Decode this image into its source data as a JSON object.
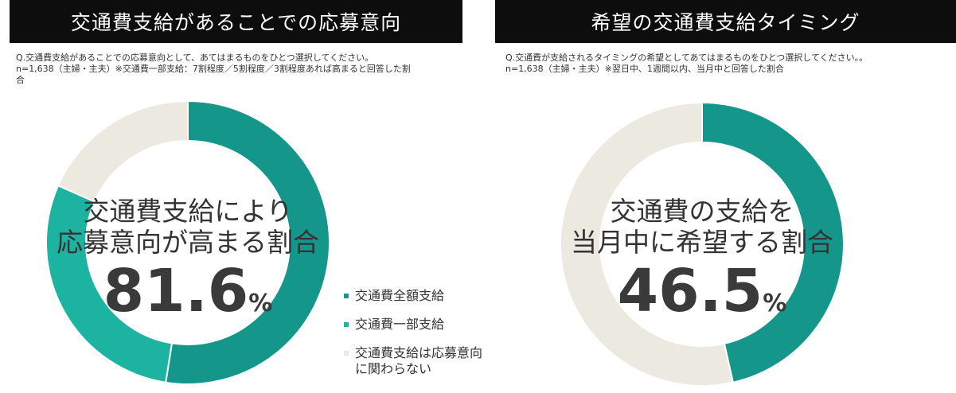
{
  "left_panel": {
    "title": "交通費支給があることでの応募意向",
    "note_q": "Q.交通費支給があることでの応募意向として、あてはまるものをひとつ選択してください。",
    "note_n": "n=1,638（主婦・主夫）※交通費一部支給：7割程度／5割程度／3割程度あれば高まると回答した割",
    "note_cont": "合",
    "center_line1": "交通費支給により",
    "center_line2": "応募意向が高まる割合",
    "big_number": "81.6",
    "big_unit": "%"
  },
  "right_panel": {
    "title": "希望の交通費支給タイミング",
    "note_q": "Q.交通費が支給されるタイミングの希望としてあてはまるものをひとつ選択してください。。",
    "note_n": "n=1,638（主婦・主夫）※翌日中、1週間以内、当月中と回答した割合",
    "center_line1": "交通費の支給を",
    "center_line2": "当月中に希望する割合",
    "big_number": "46.5",
    "big_unit": "%"
  },
  "legend": [
    {
      "label": "交通費全額支給",
      "color": "#14978a"
    },
    {
      "label": "交通費一部支給",
      "color": "#1cb3a1"
    },
    {
      "label": "交通費支給は応募意向に関わらない",
      "color": "#ece9e0"
    }
  ],
  "chart_data": [
    {
      "type": "pie",
      "title": "交通費支給があることでの応募意向",
      "categories": [
        "交通費全額支給",
        "交通費一部支給",
        "交通費支給は応募意向に関わらない"
      ],
      "values": [
        52.5,
        29.1,
        18.4
      ],
      "unit": "%",
      "colors": [
        "#14978a",
        "#1cb3a1",
        "#ece9e0"
      ],
      "legend": "right"
    },
    {
      "type": "pie",
      "title": "希望の交通費支給タイミング",
      "categories": [
        "",
        ""
      ],
      "values": [
        46.5,
        53.5
      ],
      "unit": "%",
      "colors": [
        "#14978a",
        "#ece9e0"
      ]
    }
  ]
}
